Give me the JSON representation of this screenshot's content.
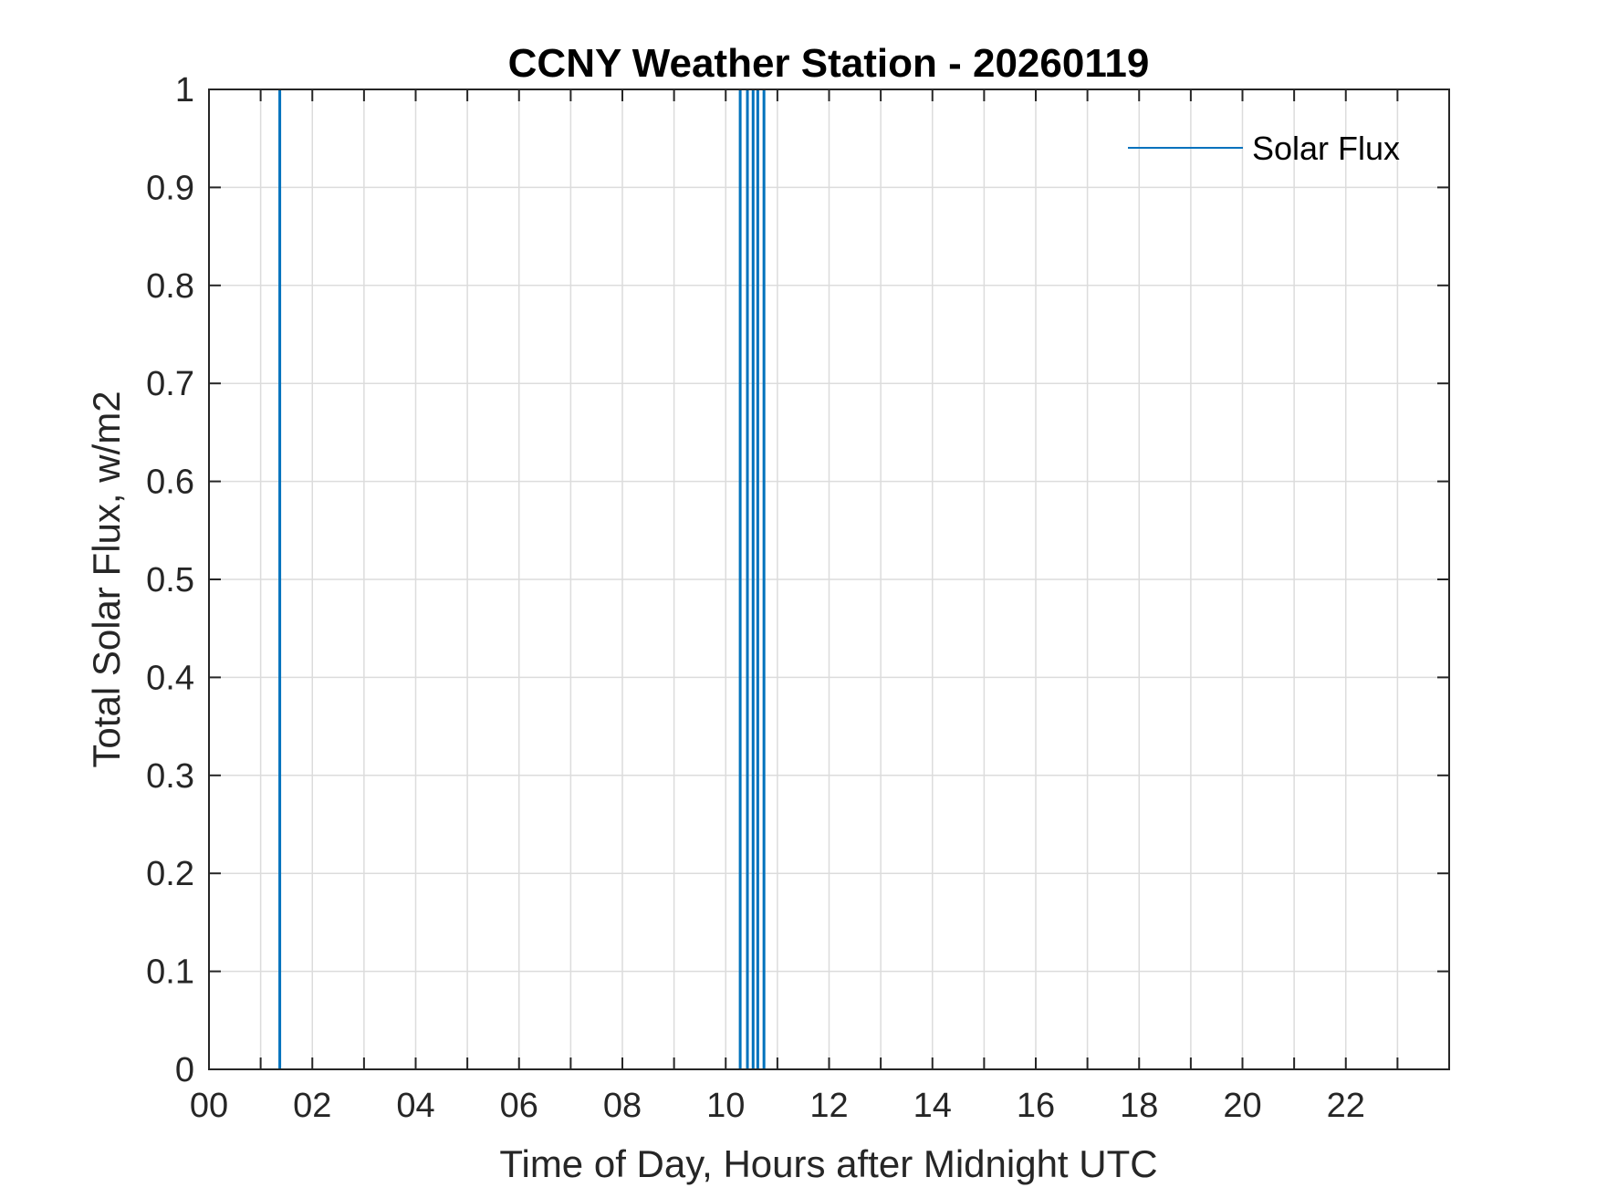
{
  "chart_data": {
    "type": "line",
    "title": "CCNY Weather Station - 20260119",
    "xlabel": "Time of Day, Hours after Midnight UTC",
    "ylabel": "Total Solar Flux, w/m2",
    "xlim": [
      0,
      24
    ],
    "ylim": [
      0,
      1
    ],
    "x_ticks": [
      0,
      2,
      4,
      6,
      8,
      10,
      12,
      14,
      16,
      18,
      20,
      22
    ],
    "x_tick_labels": [
      "00",
      "02",
      "04",
      "06",
      "08",
      "10",
      "12",
      "14",
      "16",
      "18",
      "20",
      "22"
    ],
    "x_minor_grid": [
      1,
      3,
      5,
      7,
      9,
      11,
      13,
      15,
      17,
      19,
      21,
      23
    ],
    "y_ticks": [
      0,
      0.1,
      0.2,
      0.3,
      0.4,
      0.5,
      0.6,
      0.7,
      0.8,
      0.9,
      1
    ],
    "y_tick_labels": [
      "0",
      "0.1",
      "0.2",
      "0.3",
      "0.4",
      "0.5",
      "0.6",
      "0.7",
      "0.8",
      "0.9",
      "1"
    ],
    "grid": true,
    "legend": {
      "position": "top-right",
      "entries": [
        "Solar Flux"
      ]
    },
    "series": [
      {
        "name": "Solar Flux",
        "color": "#0072bd",
        "spike_times_hours": [
          1.37,
          10.28,
          10.42,
          10.53,
          10.62,
          10.74
        ],
        "spike_values": [
          1,
          1,
          1,
          1,
          1,
          1
        ],
        "baseline": 0
      }
    ]
  }
}
